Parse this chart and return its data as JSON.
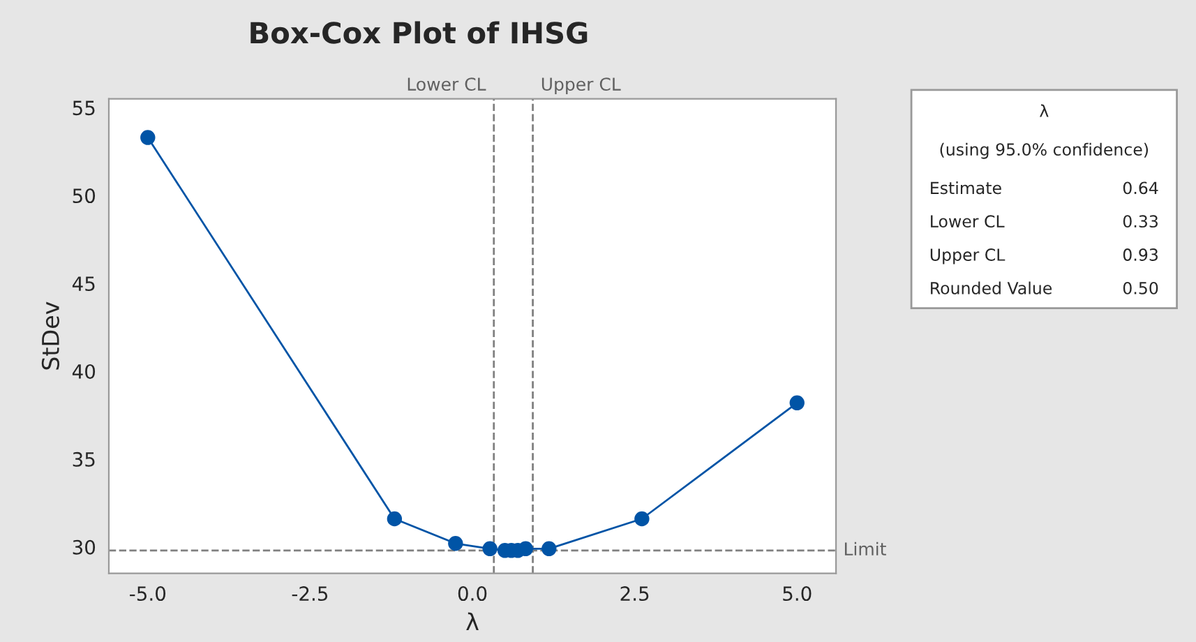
{
  "chart_data": {
    "type": "line",
    "title": "Box-Cox Plot of IHSG",
    "xlabel": "λ",
    "ylabel": "StDev",
    "x": [
      -5,
      -1.2,
      -0.26,
      0.27,
      0.5,
      0.6,
      0.7,
      0.82,
      1.18,
      2.61,
      5
    ],
    "series": [
      {
        "color": "#0054a6",
        "values": [
          53.3,
          31.6,
          30.2,
          29.9,
          29.8,
          29.8,
          29.8,
          29.9,
          29.9,
          31.6,
          38.2
        ]
      }
    ],
    "marker": "circle",
    "line_style": "solid",
    "grid": false,
    "legend": false,
    "xlim": [
      -5.6,
      5.6
    ],
    "ylim": [
      28.5,
      55.5
    ],
    "xticks": [
      {
        "value": -5,
        "label": "-5.0"
      },
      {
        "value": -2.5,
        "label": "-2.5"
      },
      {
        "value": 0,
        "label": "0.0"
      },
      {
        "value": 2.5,
        "label": "2.5"
      },
      {
        "value": 5,
        "label": "5.0"
      }
    ],
    "yticks": [
      30,
      35,
      40,
      45,
      50,
      55
    ],
    "ref_lines": [
      {
        "axis": "x",
        "value": 0.33,
        "label": "Lower CL",
        "color": "#808080",
        "line_style": "dashed"
      },
      {
        "axis": "x",
        "value": 0.93,
        "label": "Upper CL",
        "color": "#808080",
        "line_style": "dashed"
      },
      {
        "axis": "y",
        "value": 29.8,
        "label": "Limit",
        "color": "#808080",
        "line_style": "dashed"
      }
    ],
    "annotations": [
      "λ",
      "(using 95.0% confidence)",
      "Estimate",
      "0.64",
      "Lower CL",
      "0.33",
      "Upper CL",
      "0.93",
      "Rounded Value",
      "0.50"
    ]
  }
}
